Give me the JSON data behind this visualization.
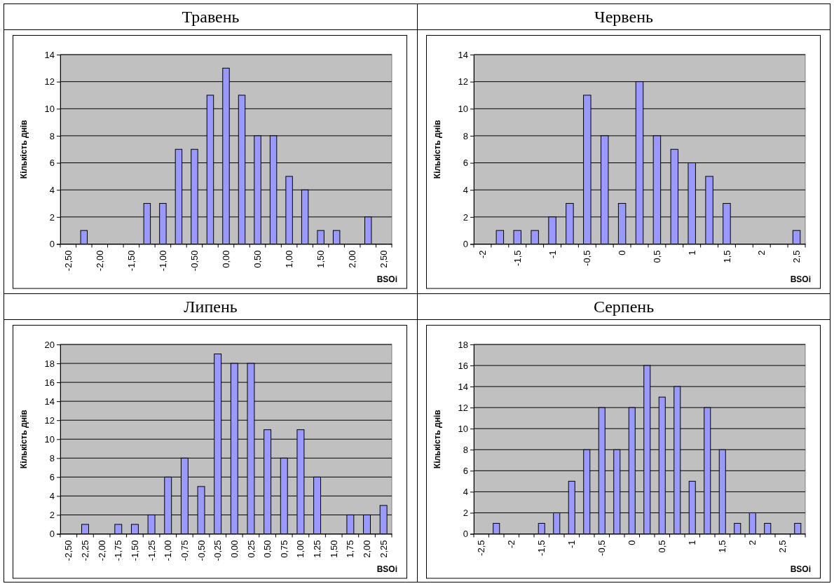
{
  "chart_data": [
    {
      "type": "bar",
      "title": "Травень",
      "xlabel": "BSOi",
      "ylabel": "Кількість днів",
      "categories": [
        "-2,50",
        null,
        "-2,00",
        null,
        "-1,50",
        null,
        "-1,00",
        null,
        "-0,50",
        null,
        "0,00",
        null,
        "0,50",
        null,
        "1,00",
        null,
        "1,50",
        null,
        "2,00",
        null,
        "2,50"
      ],
      "series": [
        {
          "color": "#9999ff",
          "values": [
            0,
            1,
            0,
            0,
            0,
            3,
            3,
            7,
            7,
            11,
            13,
            11,
            8,
            8,
            5,
            4,
            1,
            1,
            0,
            2,
            0
          ]
        }
      ],
      "ylim": [
        0,
        14
      ],
      "yticks": [
        0,
        2,
        4,
        6,
        8,
        10,
        12,
        14
      ],
      "grid": "y"
    },
    {
      "type": "bar",
      "title": "Червень",
      "xlabel": "BSOi",
      "ylabel": "Кількість днів",
      "categories": [
        "-2",
        null,
        "-1,5",
        null,
        "-1",
        null,
        "-0,5",
        null,
        "0",
        null,
        "0,5",
        null,
        "1",
        null,
        "1,5",
        null,
        "2",
        null,
        "2,5"
      ],
      "series": [
        {
          "color": "#9999ff",
          "values": [
            0,
            1,
            1,
            1,
            2,
            3,
            11,
            8,
            3,
            12,
            8,
            7,
            6,
            5,
            3,
            0,
            0,
            0,
            1
          ]
        }
      ],
      "ylim": [
        0,
        14
      ],
      "yticks": [
        0,
        2,
        4,
        6,
        8,
        10,
        12,
        14
      ],
      "grid": "y"
    },
    {
      "type": "bar",
      "title": "Липень",
      "xlabel": "BSOi",
      "ylabel": "Кількість днів",
      "categories": [
        "-2,50",
        "-2,25",
        "-2,00",
        "-1,75",
        "-1,50",
        "-1,25",
        "-1,00",
        "-0,75",
        "-0,50",
        "-0,25",
        "0,00",
        "0,25",
        "0,50",
        "0,75",
        "1,00",
        "1,25",
        "1,50",
        "1,75",
        "2,00",
        "2,25"
      ],
      "series": [
        {
          "color": "#9999ff",
          "values": [
            0,
            1,
            0,
            1,
            1,
            2,
            6,
            8,
            5,
            19,
            18,
            18,
            11,
            8,
            11,
            6,
            0,
            2,
            2,
            3
          ]
        }
      ],
      "ylim": [
        0,
        20
      ],
      "yticks": [
        0,
        2,
        4,
        6,
        8,
        10,
        12,
        14,
        16,
        18,
        20
      ],
      "grid": "y"
    },
    {
      "type": "bar",
      "title": "Серпень",
      "xlabel": "BSOi",
      "ylabel": "Кількість днів",
      "categories": [
        "-2,5",
        null,
        "-2",
        null,
        "-1,5",
        null,
        "-1",
        null,
        "-0,5",
        null,
        "0",
        null,
        "0,5",
        null,
        "1",
        null,
        "1,5",
        null,
        "2",
        null,
        "2,5",
        null
      ],
      "series": [
        {
          "color": "#9999ff",
          "values": [
            0,
            1,
            0,
            0,
            1,
            2,
            5,
            8,
            12,
            8,
            12,
            16,
            13,
            14,
            5,
            12,
            8,
            1,
            2,
            1,
            0,
            1
          ]
        }
      ],
      "ylim": [
        0,
        18
      ],
      "yticks": [
        0,
        2,
        4,
        6,
        8,
        10,
        12,
        14,
        16,
        18
      ],
      "grid": "y"
    }
  ]
}
